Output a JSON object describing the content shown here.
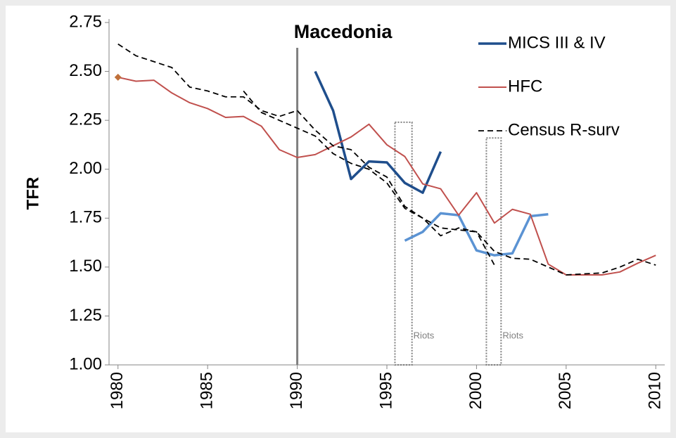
{
  "chart_data": {
    "type": "line",
    "ylabel": "TFR",
    "xlim": [
      1979.5,
      2010.5
    ],
    "ylim": [
      1.0,
      2.75
    ],
    "xticks": [
      1980,
      1985,
      1990,
      1995,
      2000,
      2005,
      2010
    ],
    "yticks": [
      {
        "value": 1.0,
        "label": "1.00"
      },
      1.25,
      {
        "value": 1.5,
        "label": "1.50"
      },
      1.75,
      {
        "value": 2.0,
        "label": "2.00"
      },
      2.25,
      {
        "value": 2.5,
        "label": "2.50"
      },
      2.75
    ],
    "legend": "upper right",
    "series": [
      {
        "name": "MICS III & IV",
        "color": "#1f4e8c",
        "width": 3.5,
        "x": [
          1991,
          1992,
          1993,
          1994,
          1995,
          1996,
          1997,
          1998
        ],
        "values": [
          2.5,
          2.3,
          1.95,
          2.04,
          2.035,
          1.93,
          1.88,
          2.09
        ]
      },
      {
        "color": "#5b93d3",
        "width": 3.5,
        "x": [
          1996,
          1997,
          1998,
          1999,
          2000,
          2001,
          2002,
          2003,
          2004
        ],
        "values": [
          1.635,
          1.68,
          1.775,
          1.765,
          1.585,
          1.56,
          1.57,
          1.76,
          1.77
        ]
      },
      {
        "name": "HFC",
        "color": "#c0504d",
        "width": 2,
        "x": [
          1980,
          1981,
          1982,
          1983,
          1984,
          1985,
          1986,
          1987,
          1988,
          1989,
          1990,
          1991,
          1992,
          1993,
          1994,
          1995,
          1996,
          1997,
          1998,
          1999,
          2000,
          2001,
          2002,
          2003,
          2004,
          2005,
          2006,
          2007,
          2008,
          2009,
          2010
        ],
        "values": [
          2.47,
          2.45,
          2.455,
          2.39,
          2.34,
          2.31,
          2.265,
          2.27,
          2.22,
          2.1,
          2.06,
          2.075,
          2.12,
          2.165,
          2.23,
          2.125,
          2.065,
          1.925,
          1.9,
          1.765,
          1.88,
          1.725,
          1.795,
          1.77,
          1.515,
          1.46,
          1.46,
          1.46,
          1.475,
          1.52,
          1.56
        ]
      },
      {
        "name": "Census R-surv",
        "color": "#000000",
        "width": 1.8,
        "dash": true,
        "x": [
          1980,
          1981,
          1982,
          1983,
          1984,
          1985,
          1986,
          1987,
          1988,
          1989,
          1990,
          1991,
          1992,
          1993,
          1994,
          1995,
          1996,
          1997,
          1998,
          1999,
          2000,
          2001,
          2002,
          2003,
          2004,
          2005,
          2006,
          2007,
          2008,
          2009,
          2010
        ],
        "values": [
          2.64,
          2.58,
          2.55,
          2.52,
          2.42,
          2.4,
          2.37,
          2.37,
          2.3,
          2.27,
          2.3,
          2.2,
          2.12,
          2.1,
          2.01,
          1.96,
          1.81,
          1.75,
          1.7,
          1.69,
          1.68,
          1.58,
          1.545,
          1.54,
          1.5,
          1.46,
          1.465,
          1.47,
          1.5,
          1.54,
          1.51
        ]
      },
      {
        "color": "#000000",
        "width": 1.8,
        "dash": true,
        "x": [
          1987,
          1988,
          1989,
          1990,
          1991,
          1992,
          1993,
          1994,
          1995,
          1996,
          1997,
          1998,
          1999,
          2000,
          2001
        ],
        "values": [
          2.4,
          2.29,
          2.25,
          2.21,
          2.17,
          2.08,
          2.03,
          2.0,
          1.93,
          1.8,
          1.75,
          1.66,
          1.7,
          1.68,
          1.51
        ]
      },
      {
        "color": "#c0703a",
        "marker": "diamond",
        "x": [
          1980
        ],
        "values": [
          2.47
        ]
      }
    ],
    "vline": {
      "x": 1990,
      "label": "Macedonia",
      "color": "#808080"
    },
    "annotations": [
      {
        "text": "Riots",
        "x0": 1995.45,
        "x1": 1996.4,
        "y0": 1.0,
        "y1": 2.24
      },
      {
        "text": "Riots",
        "x0": 2000.55,
        "x1": 2001.37,
        "y0": 1.0,
        "y1": 2.16
      }
    ]
  }
}
